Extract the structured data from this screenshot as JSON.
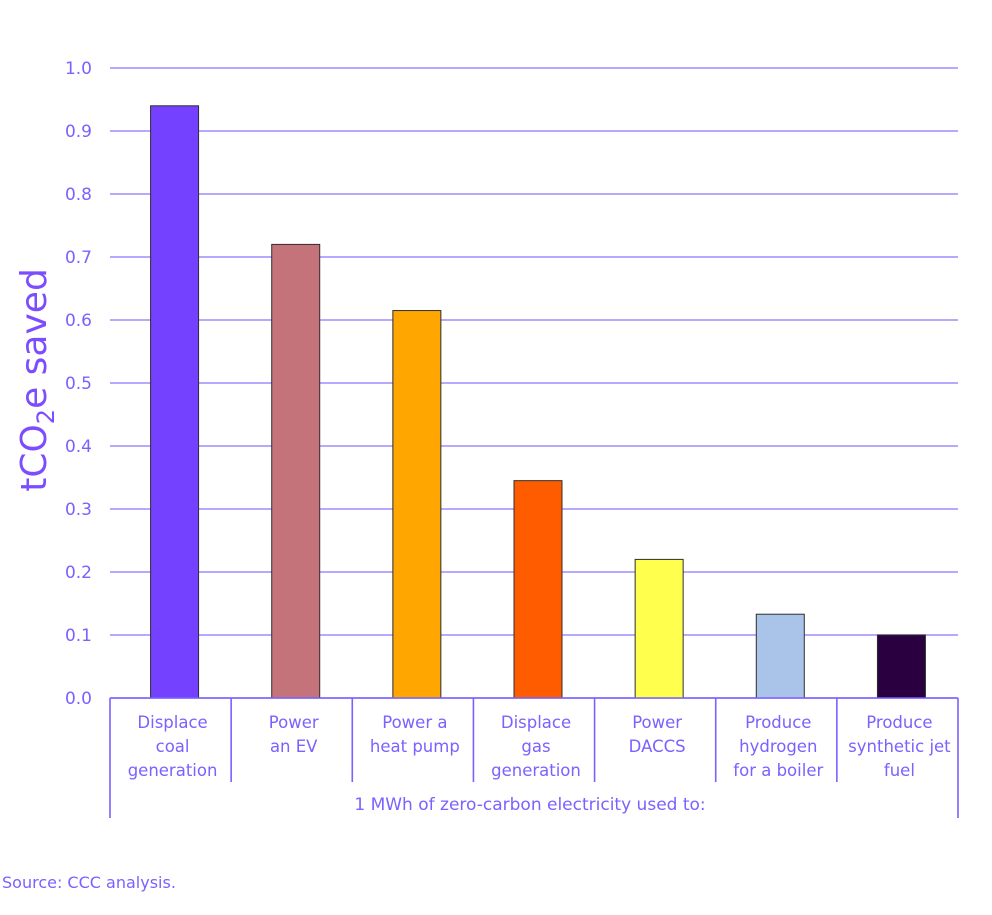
{
  "chart_data": {
    "type": "bar",
    "categories": [
      [
        "Displace",
        "coal",
        "generation"
      ],
      [
        "Power",
        "an EV"
      ],
      [
        "Power a",
        "heat pump"
      ],
      [
        "Displace",
        "gas",
        "generation"
      ],
      [
        "Power",
        "DACCS"
      ],
      [
        "Produce",
        "hydrogen",
        "for a boiler"
      ],
      [
        "Produce",
        "synthetic jet",
        "fuel"
      ]
    ],
    "values": [
      0.94,
      0.72,
      0.615,
      0.345,
      0.22,
      0.133,
      0.1
    ],
    "colors": [
      "#7341ff",
      "#c5737a",
      "#ffa600",
      "#ff5c00",
      "#ffff4d",
      "#a9c4e8",
      "#2a0040"
    ],
    "ylabel": "tCO2e saved",
    "xlabel": "1 MWh of zero-carbon electricity used to:",
    "ylim": [
      0,
      1.0
    ],
    "yticks": [
      "0.0",
      "0.1",
      "0.2",
      "0.3",
      "0.4",
      "0.5",
      "0.6",
      "0.7",
      "0.8",
      "0.9",
      "1.0"
    ],
    "grid": true,
    "accent_color": "#7b61ff"
  },
  "source": "Source: CCC analysis."
}
